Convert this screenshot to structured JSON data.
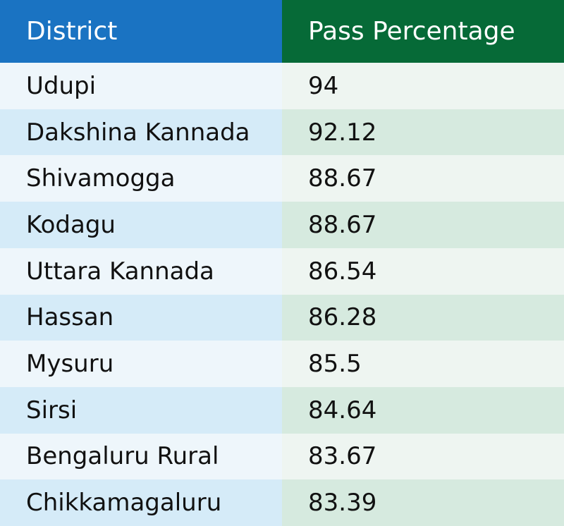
{
  "chart_data": {
    "type": "table",
    "columns": [
      "District",
      "Pass Percentage"
    ],
    "rows": [
      {
        "district": "Udupi",
        "pass_percentage": "94"
      },
      {
        "district": "Dakshina Kannada",
        "pass_percentage": "92.12"
      },
      {
        "district": "Shivamogga",
        "pass_percentage": "88.67"
      },
      {
        "district": "Kodagu",
        "pass_percentage": "88.67"
      },
      {
        "district": "Uttara Kannada",
        "pass_percentage": "86.54"
      },
      {
        "district": "Hassan",
        "pass_percentage": "86.28"
      },
      {
        "district": "Mysuru",
        "pass_percentage": "85.5"
      },
      {
        "district": "Sirsi",
        "pass_percentage": "84.64"
      },
      {
        "district": "Bengaluru Rural",
        "pass_percentage": "83.67"
      },
      {
        "district": "Chikkamagaluru",
        "pass_percentage": "83.39"
      }
    ]
  },
  "colors": {
    "header_district": "#1a73c2",
    "header_pass": "#066a37"
  }
}
